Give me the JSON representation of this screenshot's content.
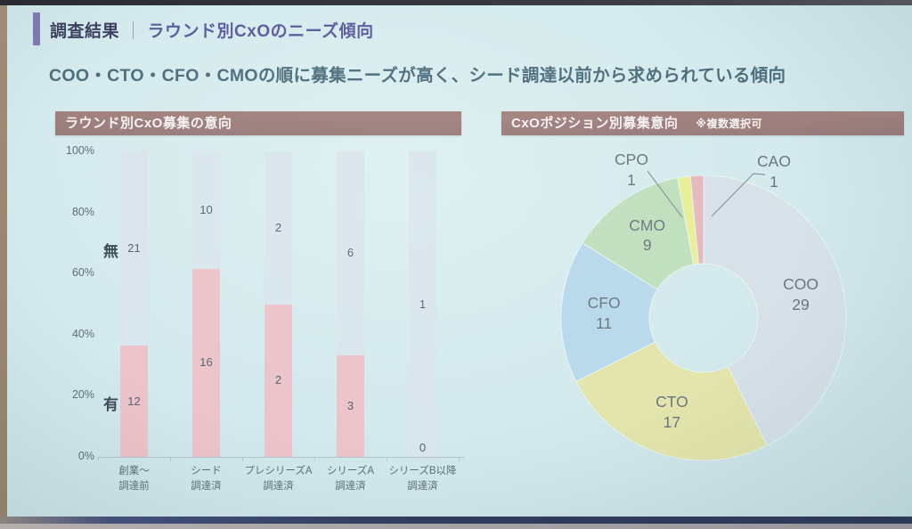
{
  "header": {
    "title_label": "調査結果",
    "title_separator": "｜",
    "title_text": "ラウンド別CxOのニーズ傾向",
    "subtitle": "COO・CTO・CFO・CMOの順に募集ニーズが高く、シード調達以前から求められている傾向"
  },
  "colors": {
    "slide_background": "#d3e9ec",
    "accent_purple": "#8279b4",
    "panel_title_bg": "#9d7f7e",
    "bar_yes": "#ecc3ca",
    "bar_no": "#d9e6ec",
    "text_dark": "#3e4a57",
    "text_gray": "#5e6e79"
  },
  "chart_data": [
    {
      "type": "bar",
      "variant": "stacked-100-percent",
      "title": "ラウンド別CxO募集の意向",
      "categories": [
        [
          "創業～",
          "調達前"
        ],
        [
          "シード",
          "調達済"
        ],
        [
          "プレシリーズA",
          "調達済"
        ],
        [
          "シリーズA",
          "調達済"
        ],
        [
          "シリーズB以降",
          "調達済"
        ]
      ],
      "series": [
        {
          "name": "有",
          "color": "#ecc3ca",
          "values": [
            12,
            16,
            2,
            3,
            0
          ]
        },
        {
          "name": "無",
          "color": "#d9e6ec",
          "values": [
            21,
            10,
            2,
            6,
            1
          ]
        }
      ],
      "y_ticks": [
        "0%",
        "20%",
        "40%",
        "60%",
        "80%",
        "100%"
      ],
      "ylim": [
        0,
        100
      ],
      "grid": false,
      "legend_position": "inside-left-of-first-bar"
    },
    {
      "type": "pie",
      "variant": "donut",
      "title": "CxOポジション別募集意向",
      "note": "※複数選択可",
      "start_angle_deg": 0,
      "direction": "clockwise",
      "slices": [
        {
          "label": "COO",
          "value": 29,
          "color": "#d6e1e8"
        },
        {
          "label": "CTO",
          "value": 17,
          "color": "#e3e5ac"
        },
        {
          "label": "CFO",
          "value": 11,
          "color": "#b7d9ea"
        },
        {
          "label": "CMO",
          "value": 9,
          "color": "#c0dfbd"
        },
        {
          "label": "CPO",
          "value": 1,
          "color": "#e9ee96"
        },
        {
          "label": "CAO",
          "value": 1,
          "color": "#e3babe"
        }
      ]
    }
  ]
}
